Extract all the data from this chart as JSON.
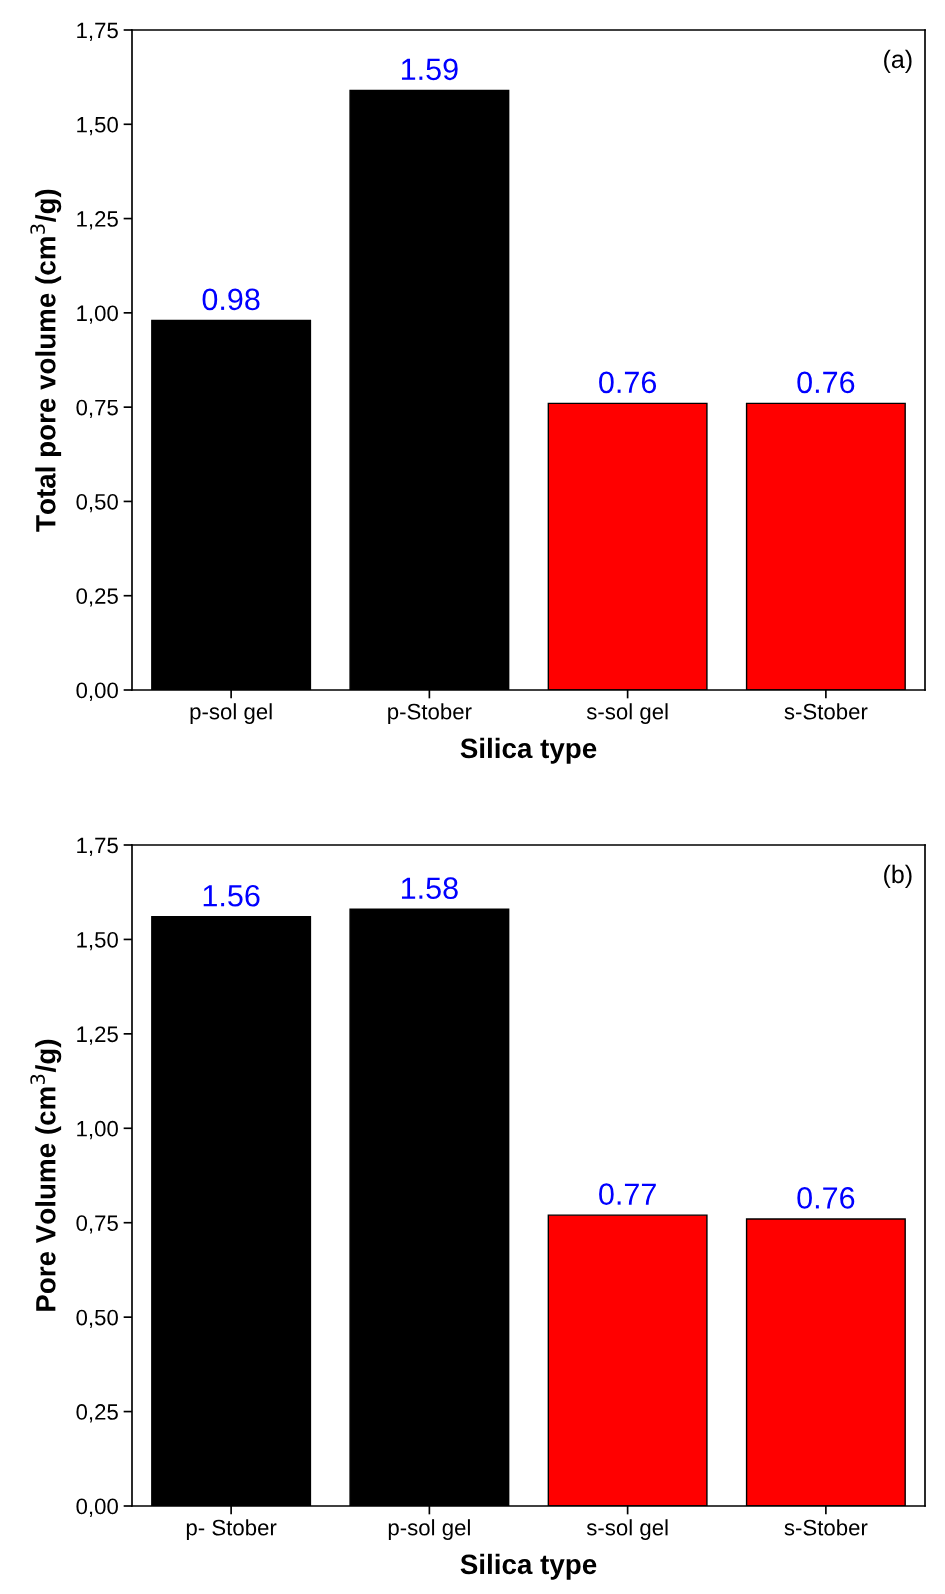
{
  "chart_data": [
    {
      "type": "bar",
      "categories": [
        "p-sol gel",
        "p-Stober",
        "s-sol gel",
        "s-Stober"
      ],
      "values": [
        0.98,
        1.59,
        0.76,
        0.76
      ],
      "colors": [
        "#000000",
        "#000000",
        "#ff0000",
        "#ff0000"
      ],
      "data_labels": true,
      "xlabel": "Silica type",
      "ylabel": "Total pore volume (cm$^{3}$/g)",
      "ylim": [
        0,
        1.75
      ],
      "yticks": [
        {
          "value": 0,
          "label": "0,00"
        },
        {
          "value": 0.25,
          "label": "0,25"
        },
        {
          "value": 0.5,
          "label": "0,50"
        },
        {
          "value": 0.75,
          "label": "0,75"
        },
        {
          "value": 1.0,
          "label": "1,00"
        },
        {
          "value": 1.25,
          "label": "1,25"
        },
        {
          "value": 1.5,
          "label": "1,50"
        },
        {
          "value": 1.75,
          "label": "1,75"
        }
      ],
      "annotations": [
        "(a)"
      ]
    },
    {
      "type": "bar",
      "categories": [
        "p- Stober",
        "p-sol gel",
        "s-sol gel",
        "s-Stober"
      ],
      "values": [
        1.56,
        1.58,
        0.77,
        0.76
      ],
      "colors": [
        "#000000",
        "#000000",
        "#ff0000",
        "#ff0000"
      ],
      "data_labels": true,
      "xlabel": "Silica type",
      "ylabel": "Pore Volume (cm$^{3}$/g)",
      "ylim": [
        0,
        1.75
      ],
      "yticks": [
        {
          "value": 0,
          "label": "0,00"
        },
        {
          "value": 0.25,
          "label": "0,25"
        },
        {
          "value": 0.5,
          "label": "0,50"
        },
        {
          "value": 0.75,
          "label": "0,75"
        },
        {
          "value": 1.0,
          "label": "1,00"
        },
        {
          "value": 1.25,
          "label": "1,25"
        },
        {
          "value": 1.5,
          "label": "1,50"
        },
        {
          "value": 1.75,
          "label": "1,75"
        }
      ],
      "annotations": [
        "(b)"
      ]
    }
  ]
}
